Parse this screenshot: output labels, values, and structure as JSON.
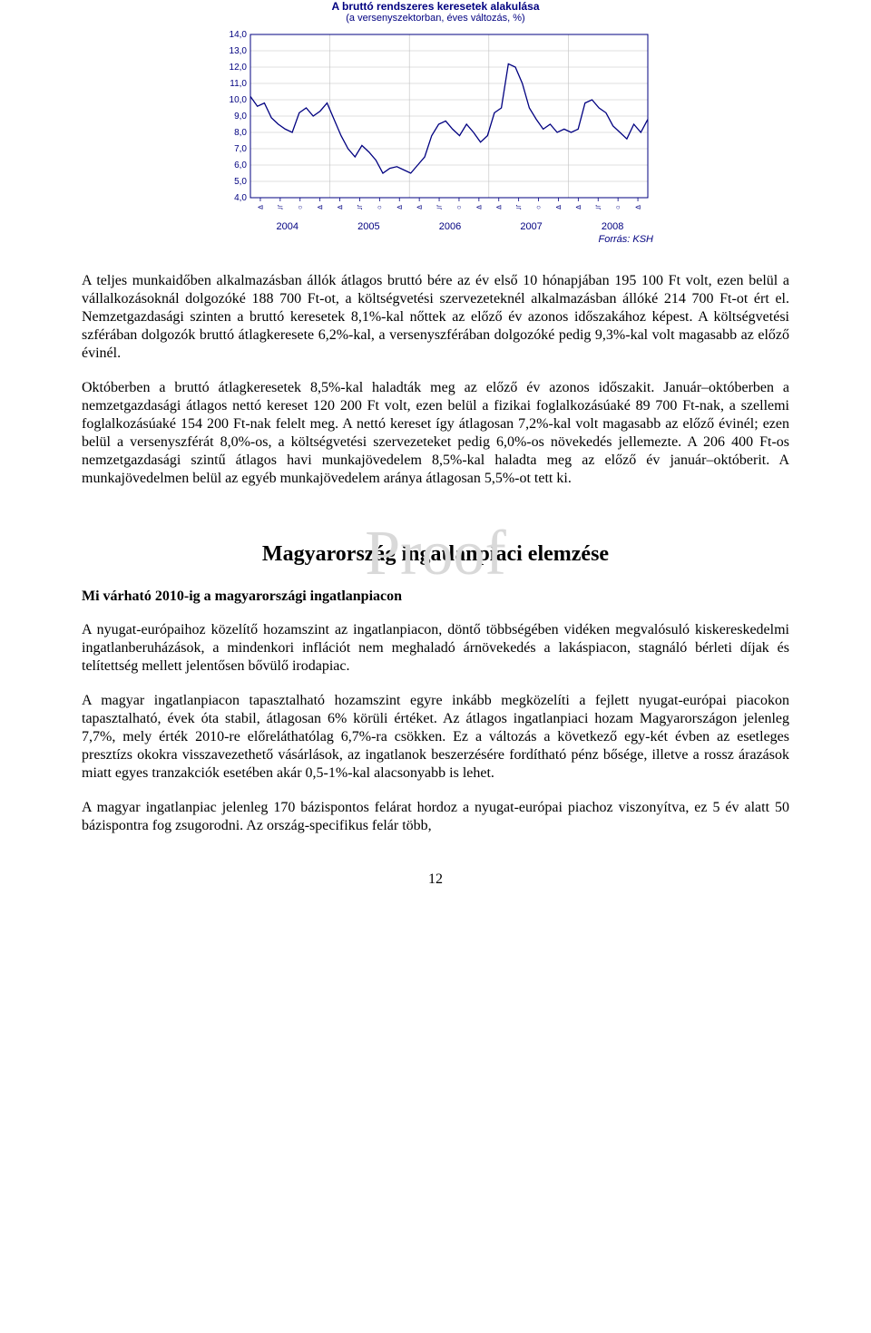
{
  "chart": {
    "type": "line",
    "title": "A bruttó rendszeres keresetek alakulása",
    "subtitle": "(a versenyszektorban, éves változás, %)",
    "source": "Forrás: KSH",
    "ylim": [
      4.0,
      14.0
    ],
    "ytick_step": 1.0,
    "ylabels": [
      "14,0",
      "13,0",
      "12,0",
      "11,0",
      "10,0",
      "9,0",
      "8,0",
      "7,0",
      "6,0",
      "5,0",
      "4,0"
    ],
    "grid_color": "#c0c0c0",
    "line_color": "#000080",
    "background_color": "#ffffff",
    "axis_color": "#000080",
    "font_color": "#000080",
    "years": [
      "2004",
      "2005",
      "2006",
      "2007",
      "2008"
    ],
    "values": [
      10.2,
      9.6,
      9.8,
      8.9,
      8.5,
      8.2,
      8.0,
      9.2,
      9.5,
      9.0,
      9.3,
      9.8,
      8.8,
      7.8,
      7.0,
      6.5,
      7.2,
      6.8,
      6.3,
      5.5,
      5.8,
      5.9,
      5.7,
      5.5,
      6.0,
      6.5,
      7.8,
      8.5,
      8.7,
      8.2,
      7.8,
      8.5,
      8.0,
      7.4,
      7.8,
      9.2,
      9.5,
      12.2,
      12.0,
      11.0,
      9.5,
      8.8,
      8.2,
      8.5,
      8.0,
      8.2,
      8.0,
      8.2,
      9.8,
      10.0,
      9.5,
      9.2,
      8.4,
      8.0,
      7.6,
      8.5,
      8.0,
      8.8
    ]
  },
  "watermark": "Proof",
  "para1": "A teljes munkaidőben alkalmazásban állók átlagos bruttó bére az év első 10 hónapjában 195 100 Ft volt, ezen belül a vállalkozásoknál dolgozóké 188 700 Ft-ot, a költségvetési szervezeteknél alkalmazásban állóké 214 700 Ft-ot ért el. Nemzetgazdasági szinten a bruttó keresetek 8,1%-kal nőttek az előző év azonos időszakához képest. A költségvetési szférában dolgozók bruttó átlagkeresete 6,2%-kal, a versenyszférában dolgozóké pedig 9,3%-kal volt magasabb az előző évinél.",
  "para2": "Októberben a bruttó átlagkeresetek 8,5%-kal haladták meg az előző év azonos időszakit. Január–októberben a nemzetgazdasági átlagos nettó kereset 120 200 Ft volt, ezen belül a fizikai foglalkozásúaké 89 700 Ft-nak, a szellemi foglalkozásúaké 154 200 Ft-nak felelt meg. A nettó kereset így átlagosan 7,2%-kal volt magasabb az előző évinél; ezen belül a versenyszférát 8,0%-os, a költségvetési szervezeteket pedig 6,0%-os növekedés jellemezte. A 206 400 Ft-os nemzetgazdasági szintű átlagos havi munkajövedelem 8,5%-kal haladta meg az előző év január–októberit. A munkajövedelmen belül az egyéb munkajövedelem aránya átlagosan 5,5%-ot tett ki.",
  "section_title": "Magyarország ingatlanpiaci elemzése",
  "subheading": "Mi várható 2010-ig a magyarországi ingatlanpiacon",
  "para3": "A nyugat-európaihoz közelítő hozamszint az ingatlanpiacon, döntő többségében vidéken megvalósuló kiskereskedelmi ingatlanberuházások, a mindenkori inflációt nem meghaladó árnövekedés a lakáspiacon, stagnáló bérleti díjak és telítettség mellett jelentősen bővülő irodapiac.",
  "para4": "A magyar ingatlanpiacon tapasztalható hozamszint egyre inkább megközelíti a fejlett nyugat-európai piacokon tapasztalható, évek óta stabil, átlagosan 6% körüli értéket. Az átlagos ingatlanpiaci hozam Magyarországon jelenleg 7,7%, mely érték 2010-re előreláthatólag 6,7%-ra csökken. Ez a változás a következő egy-két évben az esetleges presztízs okokra visszavezethető vásárlások, az ingatlanok beszerzésére fordítható pénz bősége, illetve a rossz árazások miatt egyes tranzakciók esetében akár 0,5-1%-kal alacsonyabb is lehet.",
  "para5": "A magyar ingatlanpiac jelenleg 170 bázispontos felárat hordoz a nyugat-európai piachoz viszonyítva, ez 5 év alatt 50 bázispontra fog zsugorodni. Az ország-specifikus felár több,",
  "page_number": "12"
}
